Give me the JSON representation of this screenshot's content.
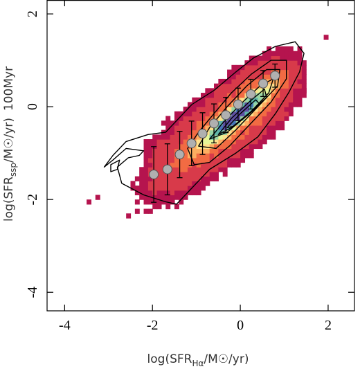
{
  "chart_data": {
    "type": "heatmap",
    "title": "",
    "xlabel": {
      "prefix": "log(SFR",
      "sub": "Hα",
      "suffix": "/M☉/yr)"
    },
    "ylabel": {
      "prefix": "log(SFR",
      "sub": "ssp",
      "suffix": "/M☉/yr)"
    },
    "annotation": "100Myr",
    "xlim": [
      -4.4,
      2.6
    ],
    "ylim": [
      -4.4,
      2.3
    ],
    "xticks": [
      -4,
      -2,
      0,
      2
    ],
    "xtick_labels": [
      "-4",
      "-2",
      "0",
      "2"
    ],
    "yticks": [
      -4,
      -2,
      0,
      2
    ],
    "ytick_labels": [
      "-4",
      "-2",
      "0",
      "2"
    ],
    "grid": false,
    "colormap": [
      "#b5144e",
      "#d83a4a",
      "#f26b43",
      "#fdae61",
      "#fee08b",
      "#e6f598",
      "#99d5a4",
      "#5eb5aa",
      "#4477b8",
      "#5e4fa2"
    ],
    "density_model": {
      "ridge_slope": 0.8,
      "ridge_intercept": -0.12,
      "core_x": -0.1,
      "core_y": -0.2
    },
    "binned_medians": {
      "x": [
        -1.97,
        -1.66,
        -1.38,
        -1.11,
        -0.86,
        -0.6,
        -0.33,
        -0.05,
        0.24,
        0.52,
        0.79
      ],
      "y": [
        -1.46,
        -1.35,
        -1.03,
        -0.79,
        -0.58,
        -0.36,
        -0.18,
        0.05,
        0.27,
        0.5,
        0.67
      ],
      "err": [
        0.6,
        0.55,
        0.5,
        0.48,
        0.45,
        0.42,
        0.38,
        0.35,
        0.32,
        0.28,
        0.25
      ],
      "marker_color": "#b0b0b0"
    },
    "contours": {
      "levels": [
        [
          [
            -3.1,
            -1.3
          ],
          [
            -2.9,
            -1.05
          ],
          [
            -2.6,
            -0.75
          ],
          [
            -2.1,
            -0.6
          ],
          [
            -1.7,
            -0.55
          ],
          [
            -1.4,
            -0.25
          ],
          [
            -1.1,
            0.05
          ],
          [
            -0.6,
            0.35
          ],
          [
            -0.1,
            0.75
          ],
          [
            0.3,
            1.05
          ],
          [
            0.8,
            1.3
          ],
          [
            1.25,
            1.4
          ],
          [
            1.45,
            1.15
          ],
          [
            1.35,
            0.75
          ],
          [
            1.1,
            0.3
          ],
          [
            0.8,
            -0.15
          ],
          [
            0.4,
            -0.65
          ],
          [
            -0.1,
            -1.0
          ],
          [
            -0.7,
            -1.35
          ],
          [
            -1.2,
            -1.85
          ],
          [
            -1.45,
            -2.1
          ],
          [
            -1.7,
            -2.05
          ],
          [
            -2.2,
            -1.9
          ],
          [
            -2.7,
            -1.65
          ],
          [
            -2.8,
            -1.3
          ],
          [
            -2.55,
            -1.1
          ],
          [
            -2.3,
            -1.05
          ],
          [
            -2.2,
            -0.95
          ],
          [
            -2.6,
            -0.9
          ],
          [
            -2.9,
            -1.15
          ]
        ],
        [
          [
            -1.2,
            -0.9
          ],
          [
            -0.95,
            -0.55
          ],
          [
            -0.6,
            -0.15
          ],
          [
            -0.2,
            0.3
          ],
          [
            0.25,
            0.7
          ],
          [
            0.7,
            1.0
          ],
          [
            1.05,
            1.0
          ],
          [
            1.05,
            0.6
          ],
          [
            0.7,
            0.1
          ],
          [
            0.25,
            -0.35
          ],
          [
            -0.25,
            -0.85
          ],
          [
            -0.7,
            -1.2
          ],
          [
            -1.05,
            -1.25
          ]
        ],
        [
          [
            -0.95,
            -0.85
          ],
          [
            -0.7,
            -0.45
          ],
          [
            -0.3,
            0.0
          ],
          [
            0.15,
            0.45
          ],
          [
            0.6,
            0.8
          ],
          [
            0.9,
            0.8
          ],
          [
            0.85,
            0.45
          ],
          [
            0.4,
            0.0
          ],
          [
            -0.1,
            -0.5
          ],
          [
            -0.55,
            -0.9
          ]
        ],
        [
          [
            -0.7,
            -0.7
          ],
          [
            -0.4,
            -0.35
          ],
          [
            0.0,
            0.05
          ],
          [
            0.45,
            0.45
          ],
          [
            0.75,
            0.6
          ],
          [
            0.65,
            0.3
          ],
          [
            0.2,
            -0.15
          ],
          [
            -0.3,
            -0.55
          ]
        ],
        [
          [
            -0.5,
            -0.6
          ],
          [
            -0.2,
            -0.25
          ],
          [
            0.2,
            0.1
          ],
          [
            0.55,
            0.38
          ],
          [
            0.6,
            0.2
          ],
          [
            0.25,
            -0.1
          ],
          [
            -0.2,
            -0.45
          ]
        ],
        [
          [
            -0.3,
            -0.45
          ],
          [
            0.0,
            -0.15
          ],
          [
            0.35,
            0.15
          ],
          [
            0.45,
            0.05
          ],
          [
            0.15,
            -0.2
          ],
          [
            -0.15,
            -0.42
          ]
        ],
        [
          [
            -2.95,
            -1.25
          ],
          [
            -2.75,
            -1.15
          ],
          [
            -2.8,
            -1.35
          ],
          [
            -2.95,
            -1.4
          ]
        ]
      ]
    }
  }
}
